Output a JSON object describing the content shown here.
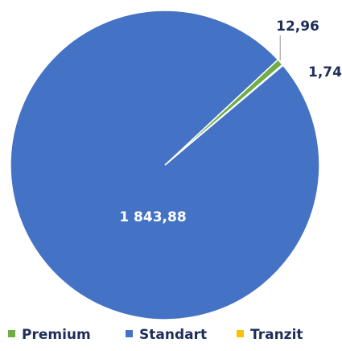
{
  "chart_data": {
    "type": "pie",
    "categories": [
      "Premium",
      "Standart",
      "Tranzit"
    ],
    "values": [
      12.96,
      1843.88,
      1.74
    ],
    "value_labels": [
      "12,96",
      "1 843,88",
      "1,74"
    ],
    "colors": [
      "#70ad47",
      "#4472c4",
      "#ffc000"
    ],
    "legend": "bottom"
  }
}
